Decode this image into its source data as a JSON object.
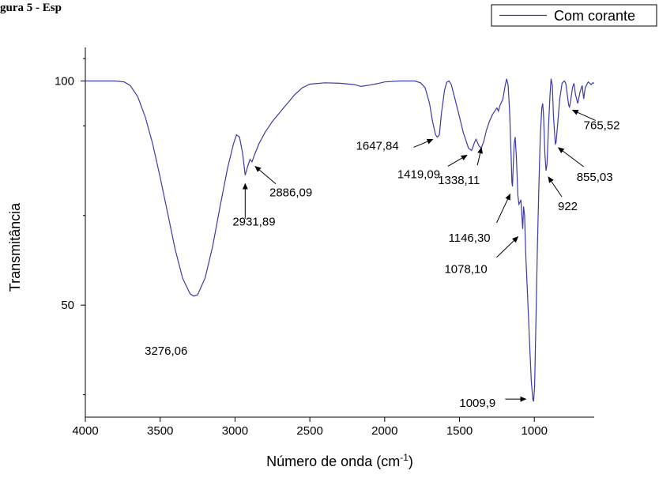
{
  "heading": "gura 5 - Esp",
  "chart_data": {
    "type": "line",
    "xlabel": "Número de onda (cm",
    "xlabel_sup": "-1",
    "xlabel_close": ")",
    "ylabel": "Transmitância",
    "xlim": [
      4000,
      600
    ],
    "ylim": [
      25,
      107.5
    ],
    "x_ticks": [
      4000,
      3500,
      3000,
      2500,
      2000,
      1500,
      1000
    ],
    "y_ticks": [
      50,
      100
    ],
    "y_minor_ticks": [
      30,
      70,
      90,
      105
    ],
    "legend": {
      "label": "Com corante",
      "position": "top-right"
    },
    "series": [
      {
        "name": "Com corante",
        "color": "#3a3aa8",
        "points": [
          [
            4000,
            100
          ],
          [
            3800,
            100
          ],
          [
            3740,
            99.8
          ],
          [
            3700,
            99
          ],
          [
            3650,
            96.5
          ],
          [
            3600,
            92
          ],
          [
            3550,
            86
          ],
          [
            3500,
            78.5
          ],
          [
            3450,
            70.5
          ],
          [
            3400,
            62.5
          ],
          [
            3350,
            56
          ],
          [
            3300,
            52.5
          ],
          [
            3276,
            52
          ],
          [
            3250,
            52.3
          ],
          [
            3200,
            56
          ],
          [
            3150,
            63
          ],
          [
            3100,
            72
          ],
          [
            3050,
            80.5
          ],
          [
            3010,
            86
          ],
          [
            2990,
            88
          ],
          [
            2970,
            87.5
          ],
          [
            2950,
            84
          ],
          [
            2932,
            79
          ],
          [
            2915,
            81
          ],
          [
            2900,
            82.5
          ],
          [
            2886,
            82
          ],
          [
            2870,
            83.5
          ],
          [
            2840,
            86
          ],
          [
            2800,
            88.5
          ],
          [
            2750,
            91
          ],
          [
            2700,
            93
          ],
          [
            2650,
            95
          ],
          [
            2600,
            97
          ],
          [
            2550,
            98.5
          ],
          [
            2500,
            99.3
          ],
          [
            2400,
            99.6
          ],
          [
            2300,
            99.5
          ],
          [
            2200,
            99.2
          ],
          [
            2160,
            98.8
          ],
          [
            2100,
            99.1
          ],
          [
            2050,
            99.4
          ],
          [
            2000,
            99.8
          ],
          [
            1900,
            100
          ],
          [
            1800,
            100
          ],
          [
            1760,
            99.6
          ],
          [
            1730,
            98.5
          ],
          [
            1700,
            95
          ],
          [
            1680,
            91
          ],
          [
            1660,
            88
          ],
          [
            1648,
            87.5
          ],
          [
            1635,
            88
          ],
          [
            1620,
            93
          ],
          [
            1600,
            98
          ],
          [
            1585,
            99.7
          ],
          [
            1570,
            100
          ],
          [
            1555,
            99.2
          ],
          [
            1530,
            96
          ],
          [
            1500,
            92
          ],
          [
            1475,
            88.5
          ],
          [
            1455,
            86.5
          ],
          [
            1440,
            85
          ],
          [
            1419,
            84.5
          ],
          [
            1400,
            86.3
          ],
          [
            1390,
            87
          ],
          [
            1370,
            85.5
          ],
          [
            1355,
            85
          ],
          [
            1338,
            86.5
          ],
          [
            1320,
            89
          ],
          [
            1300,
            91
          ],
          [
            1280,
            92.5
          ],
          [
            1250,
            94
          ],
          [
            1240,
            93.3
          ],
          [
            1230,
            94.5
          ],
          [
            1210,
            96
          ],
          [
            1195,
            99
          ],
          [
            1185,
            100.5
          ],
          [
            1175,
            99
          ],
          [
            1165,
            93
          ],
          [
            1155,
            83
          ],
          [
            1150,
            77.5
          ],
          [
            1146,
            76.5
          ],
          [
            1142,
            80
          ],
          [
            1135,
            86
          ],
          [
            1128,
            87.5
          ],
          [
            1120,
            83
          ],
          [
            1110,
            74.5
          ],
          [
            1103,
            72.5
          ],
          [
            1095,
            73
          ],
          [
            1090,
            73.5
          ],
          [
            1085,
            71
          ],
          [
            1078,
            67
          ],
          [
            1072,
            72
          ],
          [
            1065,
            70
          ],
          [
            1058,
            62
          ],
          [
            1045,
            52
          ],
          [
            1030,
            40
          ],
          [
            1020,
            33
          ],
          [
            1010,
            29
          ],
          [
            1005,
            28.5
          ],
          [
            998,
            32
          ],
          [
            990,
            45
          ],
          [
            980,
            62
          ],
          [
            970,
            76
          ],
          [
            960,
            88
          ],
          [
            950,
            94
          ],
          [
            944,
            95
          ],
          [
            938,
            92
          ],
          [
            930,
            84
          ],
          [
            922,
            80
          ],
          [
            915,
            81.5
          ],
          [
            905,
            90
          ],
          [
            895,
            97
          ],
          [
            888,
            100.5
          ],
          [
            880,
            99
          ],
          [
            872,
            92
          ],
          [
            860,
            86
          ],
          [
            855,
            86.3
          ],
          [
            850,
            88
          ],
          [
            840,
            92
          ],
          [
            830,
            96
          ],
          [
            815,
            99.5
          ],
          [
            800,
            100
          ],
          [
            790,
            99.5
          ],
          [
            780,
            97
          ],
          [
            770,
            94.5
          ],
          [
            765,
            94.2
          ],
          [
            758,
            95.5
          ],
          [
            745,
            98.5
          ],
          [
            735,
            99.5
          ],
          [
            725,
            97
          ],
          [
            710,
            95
          ],
          [
            695,
            97.5
          ],
          [
            680,
            99
          ],
          [
            670,
            96
          ],
          [
            660,
            98.5
          ],
          [
            640,
            99.8
          ],
          [
            620,
            99.2
          ],
          [
            610,
            99.6
          ],
          [
            600,
            99.5
          ]
        ]
      }
    ],
    "annotations": [
      {
        "label": "3276,06",
        "x": 3276.06,
        "y": 52,
        "arrow": false
      },
      {
        "label": "2931,89",
        "x": 2931.89,
        "y": 79,
        "arrow": true
      },
      {
        "label": "2886,09",
        "x": 2886.09,
        "y": 82,
        "arrow": true
      },
      {
        "label": "1647,84",
        "x": 1647.84,
        "y": 87.5,
        "arrow": true
      },
      {
        "label": "1419,09",
        "x": 1419.09,
        "y": 84.5,
        "arrow": true
      },
      {
        "label": "1338,11",
        "x": 1338.11,
        "y": 86.5,
        "arrow": true
      },
      {
        "label": "1146,30",
        "x": 1146.3,
        "y": 76.5,
        "arrow": true
      },
      {
        "label": "1078,10",
        "x": 1078.1,
        "y": 67,
        "arrow": true
      },
      {
        "label": "1009,9",
        "x": 1009.9,
        "y": 28.5,
        "arrow": true
      },
      {
        "label": "922",
        "x": 922,
        "y": 80,
        "arrow": true
      },
      {
        "label": "855,03",
        "x": 855.03,
        "y": 86,
        "arrow": true
      },
      {
        "label": "765,52",
        "x": 765.52,
        "y": 94.2,
        "arrow": true
      }
    ]
  }
}
